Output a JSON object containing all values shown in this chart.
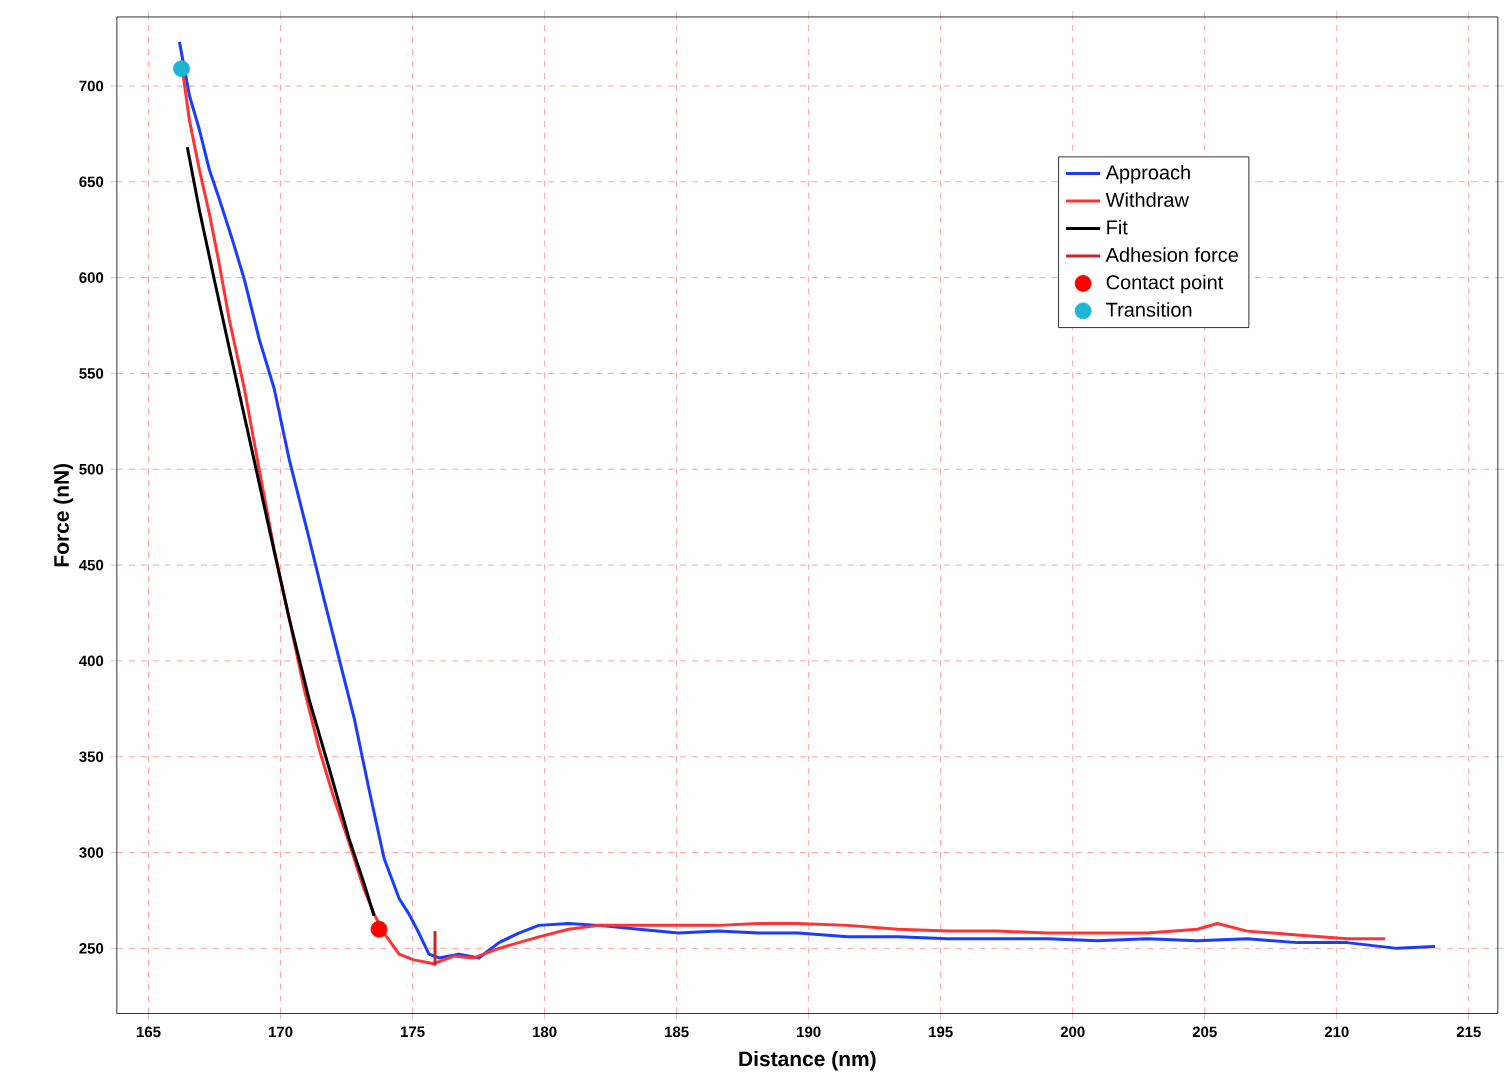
{
  "chart_data": {
    "type": "line",
    "xlabel": "Distance (nm)",
    "ylabel": "Force (nN)",
    "xlim": [
      163.8,
      216.1
    ],
    "ylim": [
      216,
      736
    ],
    "xticks": [
      165,
      170,
      175,
      180,
      185,
      190,
      195,
      200,
      205,
      210,
      215
    ],
    "yticks": [
      250,
      300,
      350,
      400,
      450,
      500,
      550,
      600,
      650,
      700
    ],
    "grid": true,
    "legend": "top right",
    "series": [
      {
        "name": "Approach",
        "color": "#1a3cff",
        "x": [
          166.17,
          166.55,
          166.93,
          167.31,
          167.68,
          168.17,
          168.63,
          169.19,
          169.76,
          170.33,
          171.08,
          171.65,
          172.22,
          172.79,
          173.35,
          173.92,
          174.49,
          174.86,
          175.24,
          175.62,
          176.0,
          176.75,
          177.51,
          178.27,
          179.02,
          179.78,
          180.91,
          182.04,
          183.56,
          185.07,
          186.58,
          188.09,
          189.6,
          191.49,
          193.38,
          195.27,
          197.16,
          199.05,
          200.94,
          202.83,
          204.72,
          206.61,
          208.5,
          210.39,
          212.28,
          213.72
        ],
        "values": [
          723,
          695,
          677,
          656,
          641,
          620,
          599,
          568,
          542,
          505,
          464,
          432,
          401,
          370,
          333,
          297,
          276,
          268,
          258,
          247,
          245,
          247,
          245,
          253,
          258,
          262,
          263,
          262,
          260,
          258,
          259,
          258,
          258,
          256,
          256,
          255,
          255,
          255,
          254,
          255,
          254,
          255,
          253,
          253,
          250,
          251
        ]
      },
      {
        "name": "Withdraw",
        "color": "#ff3333",
        "x": [
          166.28,
          166.55,
          166.93,
          167.31,
          167.68,
          168.06,
          168.63,
          169.19,
          169.76,
          170.33,
          170.9,
          171.46,
          172.03,
          172.6,
          173.16,
          173.54,
          173.92,
          174.49,
          175.05,
          175.81,
          176.56,
          177.32,
          178.27,
          179.02,
          179.78,
          180.91,
          182.04,
          183.56,
          185.07,
          186.58,
          188.09,
          189.6,
          191.49,
          193.38,
          195.27,
          197.16,
          199.05,
          200.94,
          202.83,
          204.72,
          205.48,
          206.61,
          208.5,
          210.39,
          211.83
        ],
        "values": [
          709,
          682,
          656,
          633,
          607,
          578,
          542,
          500,
          458,
          422,
          385,
          354,
          328,
          305,
          281,
          268,
          258,
          247,
          244,
          242,
          246,
          245,
          250,
          253,
          256,
          260,
          262,
          262,
          262,
          262,
          263,
          263,
          262,
          260,
          259,
          259,
          258,
          258,
          258,
          260,
          263,
          259,
          257,
          255,
          255
        ]
      },
      {
        "name": "Fit",
        "color": "#000000",
        "x": [
          166.47,
          166.93,
          167.49,
          168.06,
          168.82,
          169.57,
          170.33,
          171.08,
          171.84,
          172.6,
          173.16,
          173.54
        ],
        "values": [
          668,
          635,
          599,
          563,
          516,
          469,
          422,
          380,
          344,
          307,
          284,
          267
        ]
      },
      {
        "name": "Adhesion force",
        "color": "#c0282b",
        "x": [
          175.85,
          175.85
        ],
        "values": [
          241,
          259
        ]
      },
      {
        "name": "Contact point",
        "color": "#ff0000",
        "type": "scatter",
        "marker": "circle",
        "x": [
          173.73
        ],
        "values": [
          260
        ]
      },
      {
        "name": "Transition",
        "color": "#1eb4d2",
        "type": "scatter",
        "marker": "circle",
        "x": [
          166.25
        ],
        "values": [
          709
        ]
      }
    ]
  }
}
